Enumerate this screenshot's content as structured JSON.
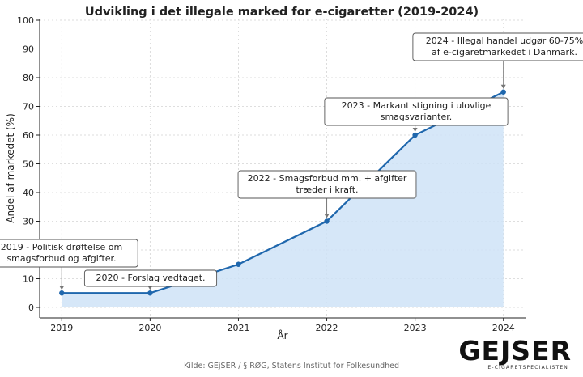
{
  "chart_data": {
    "type": "area",
    "title": "Udvikling i det illegale marked for e-cigaretter (2019-2024)",
    "xlabel": "År",
    "ylabel": "Andel af markedet (%)",
    "x": [
      2019,
      2020,
      2021,
      2022,
      2023,
      2024
    ],
    "y": [
      5,
      5,
      15,
      30,
      60,
      75
    ],
    "ylim": [
      0,
      100
    ],
    "yticks": [
      0,
      10,
      20,
      30,
      40,
      50,
      60,
      70,
      80,
      90,
      100
    ],
    "grid": true,
    "line_color": "#1f67ad",
    "fill_color": "#cfe3f7",
    "annotations": [
      {
        "x": 2019,
        "y": 5,
        "lines": [
          "2019 - Politisk drøftelse om",
          "smagsforbud og afgifter."
        ]
      },
      {
        "x": 2020,
        "y": 5,
        "lines": [
          "2020 - Forslag vedtaget."
        ]
      },
      {
        "x": 2022,
        "y": 30,
        "lines": [
          "2022 - Smagsforbud mm. + afgifter",
          "træder i kraft."
        ]
      },
      {
        "x": 2023,
        "y": 60,
        "lines": [
          "2023 - Markant stigning i ulovlige",
          "smagsvarianter."
        ]
      },
      {
        "x": 2024,
        "y": 75,
        "lines": [
          "2024 - Illegal handel udgør 60-75%",
          "af e-cigaretmarkedet i Danmark."
        ]
      }
    ]
  },
  "footer": {
    "source": "Kilde: GEjSER / § RØG, Statens Institut for Folkesundhed",
    "logo_text": "GEJSER",
    "logo_subtitle": "E-CIGARETSPECIALISTEN"
  }
}
